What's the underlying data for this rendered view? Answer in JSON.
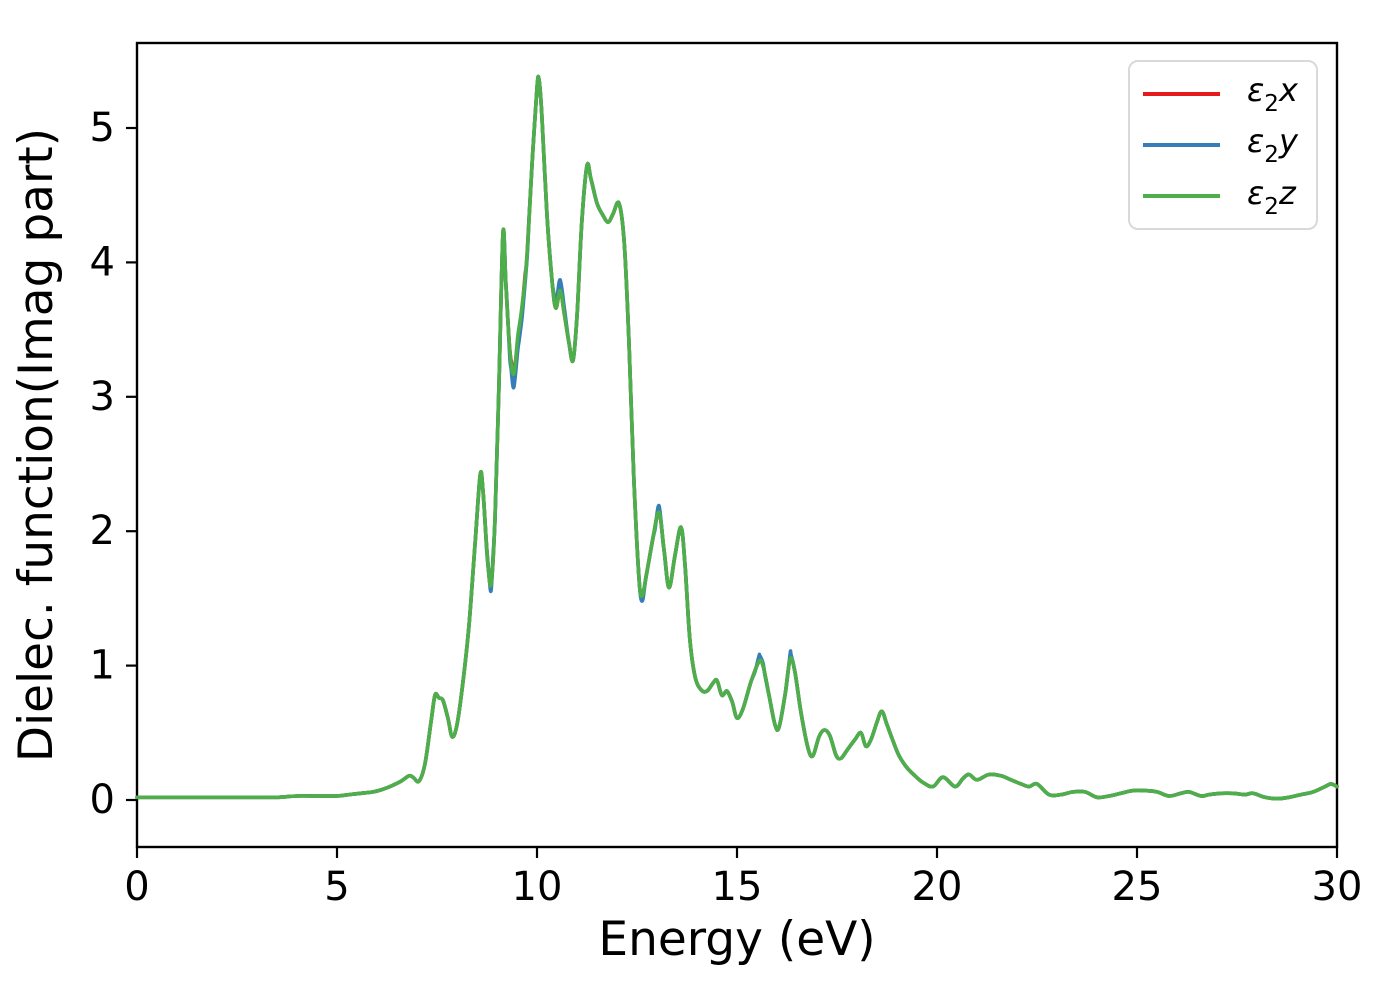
{
  "chart_data": {
    "type": "line",
    "title": "",
    "xlabel": "Energy (eV)",
    "ylabel": "Dielec. function(Imag part)",
    "xlim": [
      0,
      30
    ],
    "ylim": [
      -0.35,
      5.63
    ],
    "xticks": [
      "0",
      "5",
      "10",
      "15",
      "20",
      "25",
      "30"
    ],
    "xtick_values": [
      0,
      5,
      10,
      15,
      20,
      25,
      30
    ],
    "yticks": [
      "0",
      "1",
      "2",
      "3",
      "4",
      "5"
    ],
    "ytick_values": [
      0,
      1,
      2,
      3,
      4,
      5
    ],
    "grid": false,
    "legend": {
      "position": "upper right",
      "items": [
        {
          "name": "e2x",
          "symbol": "ε",
          "sub": "2",
          "suffix": "x",
          "color": "#e41a1c"
        },
        {
          "name": "e2y",
          "symbol": "ε",
          "sub": "2",
          "suffix": "y",
          "color": "#377eb8"
        },
        {
          "name": "e2z",
          "symbol": "ε",
          "sub": "2",
          "suffix": "z",
          "color": "#4daf4a"
        }
      ]
    },
    "base_points": [
      [
        0.0,
        0.02
      ],
      [
        0.5,
        0.02
      ],
      [
        1.0,
        0.02
      ],
      [
        1.5,
        0.02
      ],
      [
        2.0,
        0.02
      ],
      [
        2.5,
        0.02
      ],
      [
        3.0,
        0.02
      ],
      [
        3.5,
        0.02
      ],
      [
        4.0,
        0.03
      ],
      [
        4.5,
        0.03
      ],
      [
        5.0,
        0.03
      ],
      [
        5.3,
        0.04
      ],
      [
        5.6,
        0.05
      ],
      [
        5.9,
        0.06
      ],
      [
        6.15,
        0.08
      ],
      [
        6.4,
        0.11
      ],
      [
        6.6,
        0.14
      ],
      [
        6.8,
        0.18
      ],
      [
        6.9,
        0.17
      ],
      [
        7.05,
        0.14
      ],
      [
        7.2,
        0.27
      ],
      [
        7.35,
        0.58
      ],
      [
        7.45,
        0.78
      ],
      [
        7.55,
        0.76
      ],
      [
        7.65,
        0.74
      ],
      [
        7.78,
        0.6
      ],
      [
        7.88,
        0.47
      ],
      [
        8.0,
        0.56
      ],
      [
        8.15,
        0.88
      ],
      [
        8.3,
        1.3
      ],
      [
        8.45,
        1.9
      ],
      [
        8.58,
        2.42
      ],
      [
        8.65,
        2.3
      ],
      [
        8.75,
        1.85
      ],
      [
        8.85,
        1.6
      ],
      [
        8.95,
        2.1
      ],
      [
        9.05,
        3.1
      ],
      [
        9.15,
        4.22
      ],
      [
        9.22,
        3.85
      ],
      [
        9.32,
        3.35
      ],
      [
        9.42,
        3.17
      ],
      [
        9.52,
        3.45
      ],
      [
        9.62,
        3.66
      ],
      [
        9.75,
        4.05
      ],
      [
        9.88,
        4.75
      ],
      [
        10.0,
        5.3
      ],
      [
        10.05,
        5.36
      ],
      [
        10.12,
        5.1
      ],
      [
        10.25,
        4.35
      ],
      [
        10.38,
        3.85
      ],
      [
        10.47,
        3.66
      ],
      [
        10.58,
        3.79
      ],
      [
        10.68,
        3.62
      ],
      [
        10.8,
        3.4
      ],
      [
        10.9,
        3.27
      ],
      [
        11.0,
        3.6
      ],
      [
        11.12,
        4.3
      ],
      [
        11.25,
        4.72
      ],
      [
        11.35,
        4.62
      ],
      [
        11.5,
        4.44
      ],
      [
        11.65,
        4.35
      ],
      [
        11.78,
        4.3
      ],
      [
        11.9,
        4.36
      ],
      [
        12.05,
        4.44
      ],
      [
        12.18,
        4.15
      ],
      [
        12.3,
        3.4
      ],
      [
        12.42,
        2.4
      ],
      [
        12.55,
        1.65
      ],
      [
        12.63,
        1.52
      ],
      [
        12.75,
        1.7
      ],
      [
        12.9,
        1.95
      ],
      [
        13.05,
        2.14
      ],
      [
        13.18,
        1.85
      ],
      [
        13.3,
        1.58
      ],
      [
        13.45,
        1.82
      ],
      [
        13.6,
        2.03
      ],
      [
        13.7,
        1.75
      ],
      [
        13.82,
        1.2
      ],
      [
        13.95,
        0.92
      ],
      [
        14.1,
        0.82
      ],
      [
        14.25,
        0.81
      ],
      [
        14.4,
        0.87
      ],
      [
        14.5,
        0.89
      ],
      [
        14.62,
        0.78
      ],
      [
        14.75,
        0.81
      ],
      [
        14.88,
        0.73
      ],
      [
        15.0,
        0.61
      ],
      [
        15.15,
        0.68
      ],
      [
        15.35,
        0.88
      ],
      [
        15.55,
        1.03
      ],
      [
        15.65,
        1.0
      ],
      [
        15.8,
        0.78
      ],
      [
        15.95,
        0.56
      ],
      [
        16.05,
        0.54
      ],
      [
        16.2,
        0.78
      ],
      [
        16.33,
        1.05
      ],
      [
        16.45,
        0.95
      ],
      [
        16.6,
        0.65
      ],
      [
        16.78,
        0.38
      ],
      [
        16.9,
        0.33
      ],
      [
        17.05,
        0.47
      ],
      [
        17.18,
        0.52
      ],
      [
        17.32,
        0.48
      ],
      [
        17.48,
        0.33
      ],
      [
        17.6,
        0.31
      ],
      [
        17.75,
        0.37
      ],
      [
        17.95,
        0.45
      ],
      [
        18.1,
        0.5
      ],
      [
        18.22,
        0.4
      ],
      [
        18.35,
        0.45
      ],
      [
        18.5,
        0.58
      ],
      [
        18.62,
        0.66
      ],
      [
        18.75,
        0.56
      ],
      [
        18.9,
        0.44
      ],
      [
        19.05,
        0.33
      ],
      [
        19.25,
        0.24
      ],
      [
        19.45,
        0.18
      ],
      [
        19.65,
        0.13
      ],
      [
        19.9,
        0.1
      ],
      [
        20.15,
        0.17
      ],
      [
        20.45,
        0.1
      ],
      [
        20.65,
        0.16
      ],
      [
        20.8,
        0.19
      ],
      [
        21.0,
        0.15
      ],
      [
        21.3,
        0.19
      ],
      [
        21.6,
        0.18
      ],
      [
        21.85,
        0.15
      ],
      [
        22.1,
        0.12
      ],
      [
        22.3,
        0.1
      ],
      [
        22.5,
        0.12
      ],
      [
        22.8,
        0.04
      ],
      [
        23.1,
        0.04
      ],
      [
        23.4,
        0.06
      ],
      [
        23.7,
        0.06
      ],
      [
        24.0,
        0.02
      ],
      [
        24.3,
        0.03
      ],
      [
        24.6,
        0.05
      ],
      [
        24.9,
        0.07
      ],
      [
        25.2,
        0.07
      ],
      [
        25.5,
        0.06
      ],
      [
        25.8,
        0.03
      ],
      [
        26.1,
        0.05
      ],
      [
        26.3,
        0.06
      ],
      [
        26.6,
        0.03
      ],
      [
        26.8,
        0.04
      ],
      [
        27.1,
        0.05
      ],
      [
        27.4,
        0.05
      ],
      [
        27.7,
        0.04
      ],
      [
        27.9,
        0.05
      ],
      [
        28.2,
        0.02
      ],
      [
        28.5,
        0.01
      ],
      [
        28.8,
        0.02
      ],
      [
        29.1,
        0.04
      ],
      [
        29.4,
        0.06
      ],
      [
        29.7,
        0.1
      ],
      [
        29.85,
        0.12
      ],
      [
        30.0,
        0.1
      ]
    ],
    "series": [
      {
        "name": "e2x",
        "color": "#e41a1c",
        "delta_points": [
          [
            9.4,
            0
          ],
          [
            9.5,
            -0.04
          ],
          [
            9.6,
            -0.05
          ],
          [
            9.7,
            0
          ]
        ]
      },
      {
        "name": "e2y",
        "color": "#377eb8",
        "delta_points": [
          [
            8.7,
            0
          ],
          [
            8.8,
            -0.05
          ],
          [
            8.9,
            -0.04
          ],
          [
            9.0,
            0
          ],
          [
            9.25,
            0
          ],
          [
            9.35,
            -0.08
          ],
          [
            9.42,
            -0.1
          ],
          [
            9.55,
            -0.1
          ],
          [
            9.65,
            -0.08
          ],
          [
            9.8,
            0
          ],
          [
            10.4,
            0
          ],
          [
            10.5,
            0.04
          ],
          [
            10.58,
            0.08
          ],
          [
            10.7,
            0.04
          ],
          [
            10.8,
            0
          ],
          [
            12.55,
            0
          ],
          [
            12.63,
            -0.04
          ],
          [
            12.72,
            0
          ],
          [
            12.95,
            0
          ],
          [
            13.05,
            0.05
          ],
          [
            13.15,
            0
          ],
          [
            15.45,
            0
          ],
          [
            15.57,
            0.05
          ],
          [
            15.7,
            0
          ],
          [
            16.25,
            0
          ],
          [
            16.35,
            0.05
          ],
          [
            16.45,
            0
          ]
        ]
      },
      {
        "name": "e2z",
        "color": "#4daf4a",
        "delta_points": []
      }
    ]
  }
}
